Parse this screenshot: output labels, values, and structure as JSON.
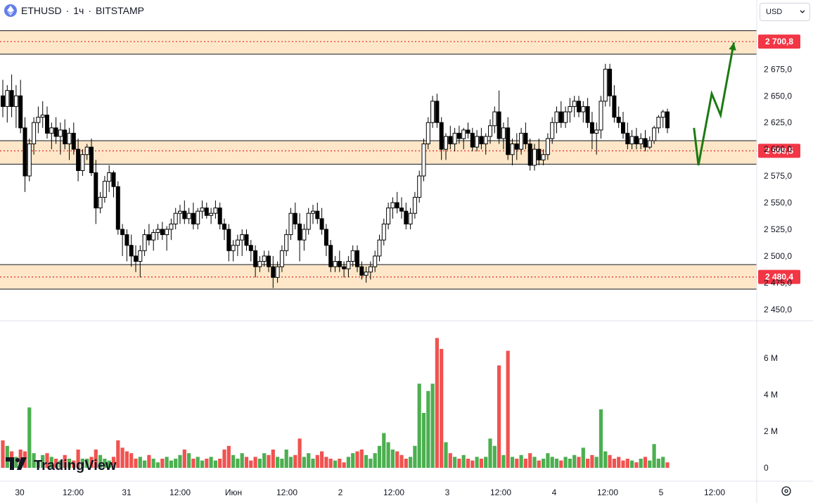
{
  "header": {
    "symbol": "ETHUSD",
    "interval": "1ч",
    "exchange": "BITSTAMP",
    "separator": "·"
  },
  "currency_select": {
    "value": "USD"
  },
  "logo": {
    "text": "TradingView"
  },
  "colors": {
    "up": "#ffffff",
    "down": "#000000",
    "vol_up": "#4caf50",
    "vol_down": "#f05350",
    "zone_fill": "#fde7c8",
    "level_line": "#e53935",
    "price_tag": "#f23645",
    "forecast": "#1b7a12"
  },
  "chart_data": {
    "type": "candlestick",
    "title": "ETHUSD · 1ч · BITSTAMP",
    "ylim": [
      2440,
      2720
    ],
    "y_ticks": [
      "2 450,0",
      "2 475,0",
      "2 500,0",
      "2 525,0",
      "2 550,0",
      "2 575,0",
      "2 600,0",
      "2 625,0",
      "2 650,0",
      "2 675,0"
    ],
    "x_ticks": [
      "30",
      "12:00",
      "31",
      "12:00",
      "Июн",
      "12:00",
      "2",
      "12:00",
      "3",
      "12:00",
      "4",
      "12:00",
      "5",
      "12:00"
    ],
    "levels": [
      {
        "label": "2 700,8",
        "value": 2700.8,
        "zone": [
          2689,
          2711
        ]
      },
      {
        "label": "2 598,5",
        "value": 2598.5,
        "zone": [
          2586,
          2608
        ]
      },
      {
        "label": "2 480,4",
        "value": 2480.4,
        "zone": [
          2469,
          2492
        ]
      }
    ],
    "volume": {
      "ylim": [
        0,
        7.5
      ],
      "unit": "M",
      "ticks": [
        "0",
        "2 M",
        "4 M",
        "6 M"
      ]
    },
    "candles": [
      [
        2650,
        2665,
        2630,
        2640,
        1.5
      ],
      [
        2640,
        2660,
        2625,
        2655,
        1.2
      ],
      [
        2655,
        2670,
        2630,
        2640,
        0.9
      ],
      [
        2640,
        2660,
        2620,
        2650,
        0.6
      ],
      [
        2650,
        2665,
        2615,
        2620,
        1.0
      ],
      [
        2620,
        2630,
        2560,
        2575,
        0.9
      ],
      [
        2575,
        2610,
        2570,
        2605,
        3.3
      ],
      [
        2605,
        2630,
        2595,
        2625,
        0.8
      ],
      [
        2625,
        2640,
        2615,
        2630,
        0.4
      ],
      [
        2630,
        2645,
        2620,
        2632,
        0.7
      ],
      [
        2632,
        2640,
        2610,
        2615,
        0.8
      ],
      [
        2615,
        2625,
        2600,
        2620,
        0.6
      ],
      [
        2620,
        2630,
        2605,
        2612,
        0.5
      ],
      [
        2612,
        2625,
        2595,
        2618,
        0.4
      ],
      [
        2618,
        2628,
        2600,
        2605,
        0.7
      ],
      [
        2605,
        2620,
        2590,
        2615,
        0.5
      ],
      [
        2615,
        2625,
        2595,
        2600,
        0.4
      ],
      [
        2600,
        2610,
        2570,
        2580,
        1.0
      ],
      [
        2580,
        2600,
        2575,
        2595,
        0.5
      ],
      [
        2595,
        2605,
        2590,
        2602,
        0.5
      ],
      [
        2602,
        2610,
        2575,
        2578,
        0.6
      ],
      [
        2578,
        2590,
        2530,
        2545,
        1.0
      ],
      [
        2545,
        2560,
        2540,
        2555,
        0.7
      ],
      [
        2555,
        2575,
        2550,
        2570,
        0.5
      ],
      [
        2570,
        2585,
        2560,
        2578,
        0.4
      ],
      [
        2578,
        2580,
        2555,
        2565,
        0.6
      ],
      [
        2565,
        2570,
        2520,
        2525,
        1.5
      ],
      [
        2525,
        2530,
        2500,
        2520,
        1.1
      ],
      [
        2520,
        2525,
        2495,
        2510,
        0.9
      ],
      [
        2510,
        2520,
        2490,
        2500,
        0.8
      ],
      [
        2500,
        2510,
        2485,
        2495,
        0.5
      ],
      [
        2495,
        2510,
        2480,
        2505,
        0.6
      ],
      [
        2505,
        2525,
        2500,
        2520,
        0.4
      ],
      [
        2520,
        2530,
        2510,
        2515,
        0.7
      ],
      [
        2515,
        2525,
        2505,
        2522,
        0.5
      ],
      [
        2522,
        2530,
        2515,
        2525,
        0.3
      ],
      [
        2525,
        2532,
        2515,
        2520,
        0.5
      ],
      [
        2520,
        2528,
        2505,
        2525,
        0.6
      ],
      [
        2525,
        2535,
        2515,
        2530,
        0.4
      ],
      [
        2530,
        2545,
        2525,
        2540,
        0.5
      ],
      [
        2540,
        2548,
        2530,
        2542,
        0.7
      ],
      [
        2542,
        2552,
        2530,
        2535,
        1.0
      ],
      [
        2535,
        2545,
        2530,
        2540,
        0.8
      ],
      [
        2540,
        2550,
        2525,
        2530,
        0.5
      ],
      [
        2530,
        2545,
        2525,
        2542,
        0.6
      ],
      [
        2542,
        2552,
        2535,
        2545,
        0.4
      ],
      [
        2545,
        2550,
        2535,
        2538,
        0.5
      ],
      [
        2538,
        2545,
        2530,
        2540,
        0.6
      ],
      [
        2540,
        2552,
        2535,
        2545,
        0.4
      ],
      [
        2545,
        2550,
        2525,
        2530,
        0.5
      ],
      [
        2530,
        2535,
        2515,
        2525,
        1.0
      ],
      [
        2525,
        2530,
        2495,
        2505,
        1.2
      ],
      [
        2505,
        2515,
        2495,
        2510,
        0.7
      ],
      [
        2510,
        2520,
        2500,
        2515,
        0.5
      ],
      [
        2515,
        2525,
        2500,
        2520,
        0.8
      ],
      [
        2520,
        2525,
        2505,
        2510,
        0.6
      ],
      [
        2510,
        2515,
        2495,
        2505,
        0.4
      ],
      [
        2505,
        2510,
        2480,
        2490,
        0.6
      ],
      [
        2490,
        2500,
        2485,
        2495,
        0.5
      ],
      [
        2495,
        2505,
        2490,
        2500,
        0.8
      ],
      [
        2500,
        2505,
        2485,
        2490,
        0.7
      ],
      [
        2490,
        2500,
        2470,
        2480,
        1.0
      ],
      [
        2480,
        2495,
        2475,
        2490,
        0.6
      ],
      [
        2490,
        2510,
        2485,
        2505,
        0.5
      ],
      [
        2505,
        2525,
        2500,
        2520,
        1.0
      ],
      [
        2520,
        2545,
        2515,
        2540,
        0.6
      ],
      [
        2540,
        2550,
        2525,
        2530,
        0.7
      ],
      [
        2530,
        2540,
        2495,
        2515,
        1.6
      ],
      [
        2515,
        2530,
        2505,
        2525,
        0.6
      ],
      [
        2525,
        2545,
        2520,
        2540,
        0.8
      ],
      [
        2540,
        2548,
        2530,
        2542,
        0.5
      ],
      [
        2542,
        2550,
        2530,
        2535,
        0.7
      ],
      [
        2535,
        2545,
        2520,
        2525,
        0.9
      ],
      [
        2525,
        2530,
        2500,
        2510,
        0.6
      ],
      [
        2510,
        2515,
        2485,
        2490,
        0.5
      ],
      [
        2490,
        2500,
        2485,
        2495,
        0.4
      ],
      [
        2495,
        2505,
        2485,
        2490,
        0.5
      ],
      [
        2490,
        2495,
        2480,
        2488,
        0.3
      ],
      [
        2488,
        2500,
        2480,
        2495,
        0.6
      ],
      [
        2495,
        2510,
        2490,
        2505,
        0.8
      ],
      [
        2505,
        2510,
        2485,
        2490,
        0.9
      ],
      [
        2490,
        2495,
        2478,
        2482,
        1.0
      ],
      [
        2482,
        2490,
        2475,
        2485,
        0.7
      ],
      [
        2485,
        2495,
        2478,
        2490,
        0.5
      ],
      [
        2490,
        2505,
        2485,
        2500,
        0.8
      ],
      [
        2500,
        2520,
        2495,
        2515,
        1.2
      ],
      [
        2515,
        2535,
        2510,
        2530,
        1.9
      ],
      [
        2530,
        2550,
        2525,
        2545,
        1.4
      ],
      [
        2545,
        2555,
        2535,
        2550,
        1.0
      ],
      [
        2550,
        2560,
        2540,
        2545,
        0.9
      ],
      [
        2545,
        2555,
        2535,
        2542,
        0.7
      ],
      [
        2542,
        2550,
        2525,
        2530,
        0.5
      ],
      [
        2530,
        2545,
        2525,
        2540,
        0.6
      ],
      [
        2540,
        2560,
        2535,
        2555,
        1.2
      ],
      [
        2555,
        2580,
        2550,
        2575,
        4.6
      ],
      [
        2575,
        2610,
        2570,
        2605,
        3.0
      ],
      [
        2605,
        2630,
        2600,
        2625,
        4.2
      ],
      [
        2625,
        2650,
        2620,
        2645,
        4.6
      ],
      [
        2645,
        2652,
        2620,
        2625,
        7.1
      ],
      [
        2625,
        2630,
        2590,
        2600,
        6.5
      ],
      [
        2600,
        2615,
        2590,
        2612,
        1.4
      ],
      [
        2612,
        2622,
        2600,
        2605,
        0.8
      ],
      [
        2605,
        2620,
        2598,
        2615,
        0.6
      ],
      [
        2615,
        2622,
        2605,
        2610,
        0.5
      ],
      [
        2610,
        2620,
        2600,
        2618,
        0.7
      ],
      [
        2618,
        2625,
        2610,
        2615,
        0.5
      ],
      [
        2615,
        2620,
        2598,
        2602,
        0.4
      ],
      [
        2602,
        2618,
        2598,
        2612,
        0.6
      ],
      [
        2612,
        2620,
        2600,
        2605,
        0.5
      ],
      [
        2605,
        2615,
        2595,
        2612,
        0.6
      ],
      [
        2612,
        2628,
        2605,
        2622,
        1.6
      ],
      [
        2622,
        2640,
        2615,
        2635,
        1.2
      ],
      [
        2635,
        2655,
        2605,
        2610,
        5.6
      ],
      [
        2610,
        2625,
        2600,
        2620,
        0.7
      ],
      [
        2620,
        2630,
        2590,
        2595,
        6.4
      ],
      [
        2595,
        2610,
        2585,
        2605,
        0.6
      ],
      [
        2605,
        2615,
        2590,
        2600,
        0.5
      ],
      [
        2600,
        2620,
        2595,
        2615,
        0.7
      ],
      [
        2615,
        2625,
        2600,
        2605,
        0.5
      ],
      [
        2605,
        2610,
        2580,
        2585,
        0.8
      ],
      [
        2585,
        2605,
        2580,
        2600,
        0.6
      ],
      [
        2600,
        2610,
        2585,
        2590,
        0.4
      ],
      [
        2590,
        2600,
        2585,
        2595,
        0.5
      ],
      [
        2595,
        2615,
        2590,
        2610,
        0.8
      ],
      [
        2610,
        2630,
        2605,
        2625,
        0.6
      ],
      [
        2625,
        2640,
        2615,
        2635,
        0.5
      ],
      [
        2635,
        2645,
        2620,
        2625,
        0.4
      ],
      [
        2625,
        2640,
        2620,
        2635,
        0.6
      ],
      [
        2635,
        2648,
        2625,
        2640,
        0.5
      ],
      [
        2640,
        2650,
        2630,
        2645,
        0.7
      ],
      [
        2645,
        2650,
        2630,
        2635,
        0.6
      ],
      [
        2635,
        2645,
        2625,
        2640,
        1.1
      ],
      [
        2640,
        2648,
        2620,
        2625,
        0.5
      ],
      [
        2625,
        2635,
        2600,
        2615,
        0.7
      ],
      [
        2615,
        2625,
        2595,
        2618,
        0.6
      ],
      [
        2618,
        2650,
        2610,
        2645,
        3.2
      ],
      [
        2645,
        2680,
        2640,
        2675,
        0.9
      ],
      [
        2675,
        2680,
        2640,
        2650,
        0.7
      ],
      [
        2650,
        2660,
        2625,
        2630,
        0.5
      ],
      [
        2630,
        2640,
        2620,
        2625,
        0.6
      ],
      [
        2625,
        2635,
        2610,
        2615,
        0.4
      ],
      [
        2615,
        2625,
        2600,
        2605,
        0.5
      ],
      [
        2605,
        2618,
        2600,
        2612,
        0.4
      ],
      [
        2612,
        2620,
        2600,
        2605,
        0.3
      ],
      [
        2605,
        2615,
        2600,
        2610,
        0.5
      ],
      [
        2610,
        2618,
        2598,
        2602,
        0.6
      ],
      [
        2602,
        2612,
        2600,
        2608,
        0.4
      ],
      [
        2608,
        2622,
        2605,
        2620,
        1.3
      ],
      [
        2620,
        2632,
        2615,
        2630,
        0.5
      ],
      [
        2630,
        2637,
        2620,
        2635,
        0.6
      ],
      [
        2635,
        2638,
        2615,
        2620,
        0.3
      ]
    ],
    "forecast_path": [
      [
        156,
        2620
      ],
      [
        157,
        2585
      ],
      [
        160,
        2652
      ],
      [
        162,
        2632
      ],
      [
        165,
        2700
      ]
    ]
  }
}
